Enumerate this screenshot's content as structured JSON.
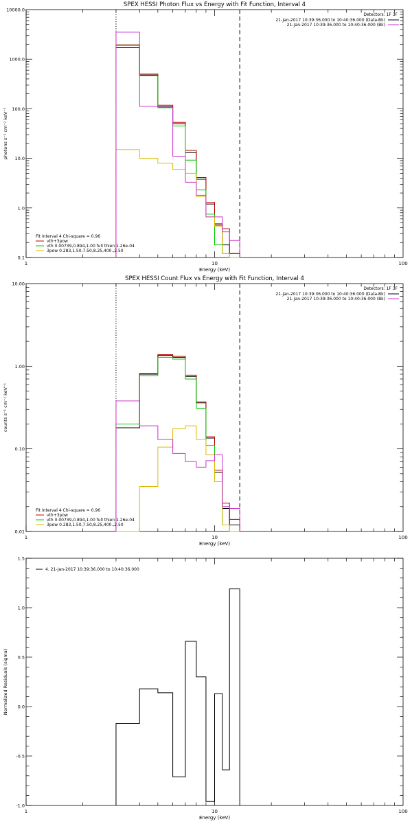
{
  "chart_data": [
    {
      "type": "line",
      "title": "SPEX HESSI Photon Flux vs Energy with Fit Function, Interval 4",
      "xlabel": "Energy (keV)",
      "ylabel": "photons s⁻¹ cm⁻² keV⁻¹",
      "xscale": "log",
      "yscale": "log",
      "xlim": [
        1,
        100
      ],
      "ylim": [
        0.1,
        10000
      ],
      "xticks": [
        {
          "v": 1,
          "label": "1"
        },
        {
          "v": 10,
          "label": "10"
        },
        {
          "v": 100,
          "label": "100"
        }
      ],
      "yticks": [
        {
          "v": 0.1,
          "label": "0.1"
        },
        {
          "v": 1,
          "label": "1.0"
        },
        {
          "v": 10,
          "label": "10.0"
        },
        {
          "v": 100,
          "label": "100.0"
        },
        {
          "v": 1000,
          "label": "1000.0"
        },
        {
          "v": 10000,
          "label": "10000.0"
        }
      ],
      "vlines": [
        {
          "x": 3.0,
          "style": "dotted"
        },
        {
          "x": 13.6,
          "style": "dashed"
        }
      ],
      "legend_top": {
        "header": "Detectors: 1F 3F",
        "entries": [
          {
            "label": "21-Jan-2017 10:39:36.000 to 10:40:36.000 (Data-Bk)",
            "color": "#000000"
          },
          {
            "label": "21-Jan-2017 10:39:36.000 to 10:40:36.000 (Bk)",
            "color": "#cc33cc"
          }
        ]
      },
      "legend_bottom": {
        "header": "Fit Interval  4   Chi-square = 0.96",
        "entries": [
          {
            "label": "vth+3pow",
            "color": "#bb0000"
          },
          {
            "label": "vth 0.00739,0.894,1.00  full thien 1.26e-04",
            "color": "#00cc00"
          },
          {
            "label": "3pow 0.283,1.50,7.50,8.25,400.,2.50",
            "color": "#ddbb00"
          }
        ]
      },
      "bin_edges": [
        3.0,
        4.0,
        5.0,
        6.0,
        7.0,
        8.0,
        9.0,
        10.0,
        11.0,
        12.0,
        13.6
      ],
      "series": [
        {
          "color": "#000000",
          "values": [
            1700,
            480,
            110,
            50,
            13,
            3.8,
            1.2,
            0.45,
            0.18,
            0.12
          ]
        },
        {
          "color": "#bb0000",
          "values": [
            1950,
            500,
            118,
            53,
            14.5,
            4.1,
            1.3,
            0.48,
            0.38,
            0.12
          ]
        },
        {
          "color": "#00cc00",
          "values": [
            1900,
            460,
            105,
            45,
            9.2,
            2.3,
            0.75,
            0.18,
            0.12,
            0.1
          ]
        },
        {
          "color": "#ddbb00",
          "values": [
            15,
            10,
            8,
            6,
            5,
            1.7,
            0.66,
            0.42,
            0.12,
            0.1
          ]
        },
        {
          "color": "#cc33cc",
          "values": [
            3500,
            112,
            108,
            11,
            3.3,
            1.8,
            0.66,
            0.66,
            0.33,
            0.22
          ]
        }
      ]
    },
    {
      "type": "line",
      "title": "SPEX HESSI Count Flux vs Energy with Fit Function, Interval 4",
      "xlabel": "Energy (keV)",
      "ylabel": "counts s⁻¹ cm⁻² keV⁻¹",
      "xscale": "log",
      "yscale": "log",
      "xlim": [
        1,
        100
      ],
      "ylim": [
        0.01,
        10
      ],
      "xticks": [
        {
          "v": 1,
          "label": "1"
        },
        {
          "v": 10,
          "label": "10"
        },
        {
          "v": 100,
          "label": "100"
        }
      ],
      "yticks": [
        {
          "v": 0.01,
          "label": "0.01"
        },
        {
          "v": 0.1,
          "label": "0.10"
        },
        {
          "v": 1,
          "label": "1.00"
        },
        {
          "v": 10,
          "label": "10.00"
        }
      ],
      "vlines": [
        {
          "x": 3.0,
          "style": "dotted"
        },
        {
          "x": 13.6,
          "style": "dashed"
        }
      ],
      "legend_top": {
        "header": "Detectors: 1F 3F",
        "entries": [
          {
            "label": "21-Jan-2017 10:39:36.000 to 10:40:36.000 (Data-Bk)",
            "color": "#000000"
          },
          {
            "label": "21-Jan-2017 10:39:36.000 to 10:40:36.000 (Bk)",
            "color": "#cc33cc"
          }
        ]
      },
      "legend_bottom": {
        "header": "Fit Interval  4   Chi-square = 0.96",
        "entries": [
          {
            "label": "vth+3pow",
            "color": "#bb0000"
          },
          {
            "label": "vth 0.00739,0.894,1.00  full thien 1.26e-04",
            "color": "#00cc00"
          },
          {
            "label": "3pow 0.283,1.50,7.50,8.25,400.,2.50",
            "color": "#ddbb00"
          }
        ]
      },
      "bin_edges": [
        3.0,
        4.0,
        5.0,
        6.0,
        7.0,
        8.0,
        9.0,
        10.0,
        11.0,
        12.0,
        13.6
      ],
      "series": [
        {
          "color": "#000000",
          "values": [
            0.18,
            0.8,
            1.35,
            1.28,
            0.75,
            0.36,
            0.135,
            0.052,
            0.019,
            0.012
          ]
        },
        {
          "color": "#bb0000",
          "values": [
            0.2,
            0.82,
            1.38,
            1.32,
            0.78,
            0.37,
            0.14,
            0.055,
            0.022,
            0.014
          ]
        },
        {
          "color": "#00cc00",
          "values": [
            0.2,
            0.77,
            1.28,
            1.22,
            0.7,
            0.31,
            0.11,
            0.04,
            0.012,
            0.01
          ]
        },
        {
          "color": "#ddbb00",
          "values": [
            0.01,
            0.035,
            0.105,
            0.175,
            0.19,
            0.13,
            0.085,
            0.04,
            0.012,
            0.01
          ]
        },
        {
          "color": "#cc33cc",
          "values": [
            0.38,
            0.19,
            0.13,
            0.088,
            0.07,
            0.06,
            0.072,
            0.085,
            0.02,
            0.019
          ]
        }
      ]
    },
    {
      "type": "line",
      "title": "",
      "xlabel": "Energy (keV)",
      "ylabel": "Normalized Residuals (sigma)",
      "xscale": "log",
      "yscale": "linear",
      "xlim": [
        1,
        100
      ],
      "ylim": [
        -1.0,
        1.5
      ],
      "xticks": [
        {
          "v": 1,
          "label": "1"
        },
        {
          "v": 10,
          "label": "10"
        },
        {
          "v": 100,
          "label": "100"
        }
      ],
      "yticks": [
        {
          "v": -1.0,
          "label": "-1.0"
        },
        {
          "v": -0.5,
          "label": "-0.5"
        },
        {
          "v": 0.0,
          "label": "0.0"
        },
        {
          "v": 0.5,
          "label": "0.5"
        },
        {
          "v": 1.0,
          "label": "1.0"
        },
        {
          "v": 1.5,
          "label": "1.5"
        }
      ],
      "vlines": [],
      "legend_top": null,
      "legend_inset": {
        "label": "4. 21-Jan-2017 10:39:36.000 to 10:40:36.000",
        "color": "#000000"
      },
      "legend_bottom": null,
      "bin_edges": [
        3.0,
        4.0,
        5.0,
        6.0,
        7.0,
        8.0,
        9.0,
        10.0,
        11.0,
        12.0,
        13.6
      ],
      "series": [
        {
          "color": "#000000",
          "values": [
            -0.17,
            0.18,
            0.14,
            -0.71,
            0.66,
            0.3,
            -0.96,
            0.13,
            -0.64,
            1.19
          ]
        }
      ]
    }
  ]
}
